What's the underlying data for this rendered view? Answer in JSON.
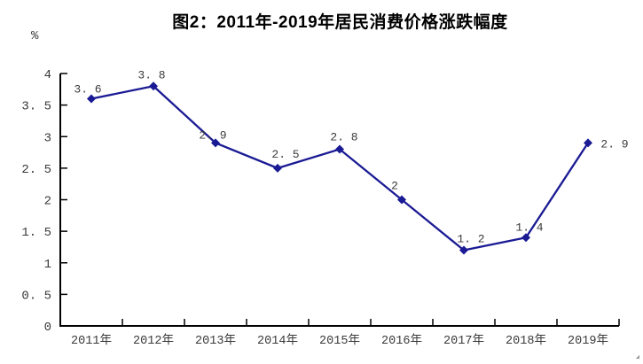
{
  "page": {
    "background_color": "#ffffff"
  },
  "chart_data": {
    "type": "line",
    "title": "图2：2011年-2019年居民消费价格涨跌幅度",
    "xlabel": "",
    "ylabel": "%",
    "categories": [
      "2011年",
      "2012年",
      "2013年",
      "2014年",
      "2015年",
      "2016年",
      "2017年",
      "2018年",
      "2019年"
    ],
    "values": [
      3.6,
      3.8,
      2.9,
      2.5,
      2.8,
      2,
      1.2,
      1.4,
      2.9
    ],
    "point_labels": [
      "3. 6",
      "3. 8",
      "2. 9",
      "2. 5",
      "2. 8",
      "2",
      "1. 2",
      "1. 4",
      "2. 9"
    ],
    "ylim": [
      0,
      4
    ],
    "y_ticks": [
      0,
      0.5,
      1,
      1.5,
      2,
      2.5,
      3,
      3.5,
      4
    ],
    "y_tick_labels": [
      "0",
      "0. 5",
      "1",
      "1. 5",
      "2",
      "2. 5",
      "3",
      "3. 5",
      "4"
    ],
    "grid": false,
    "legend": "none",
    "marker": "diamond",
    "line_color": "#1a1a94",
    "marker_color": "#1a1a94",
    "axis_color": "#000000",
    "tick_label_color": "#3a3a3a",
    "point_label_color": "#3a3a3a"
  }
}
